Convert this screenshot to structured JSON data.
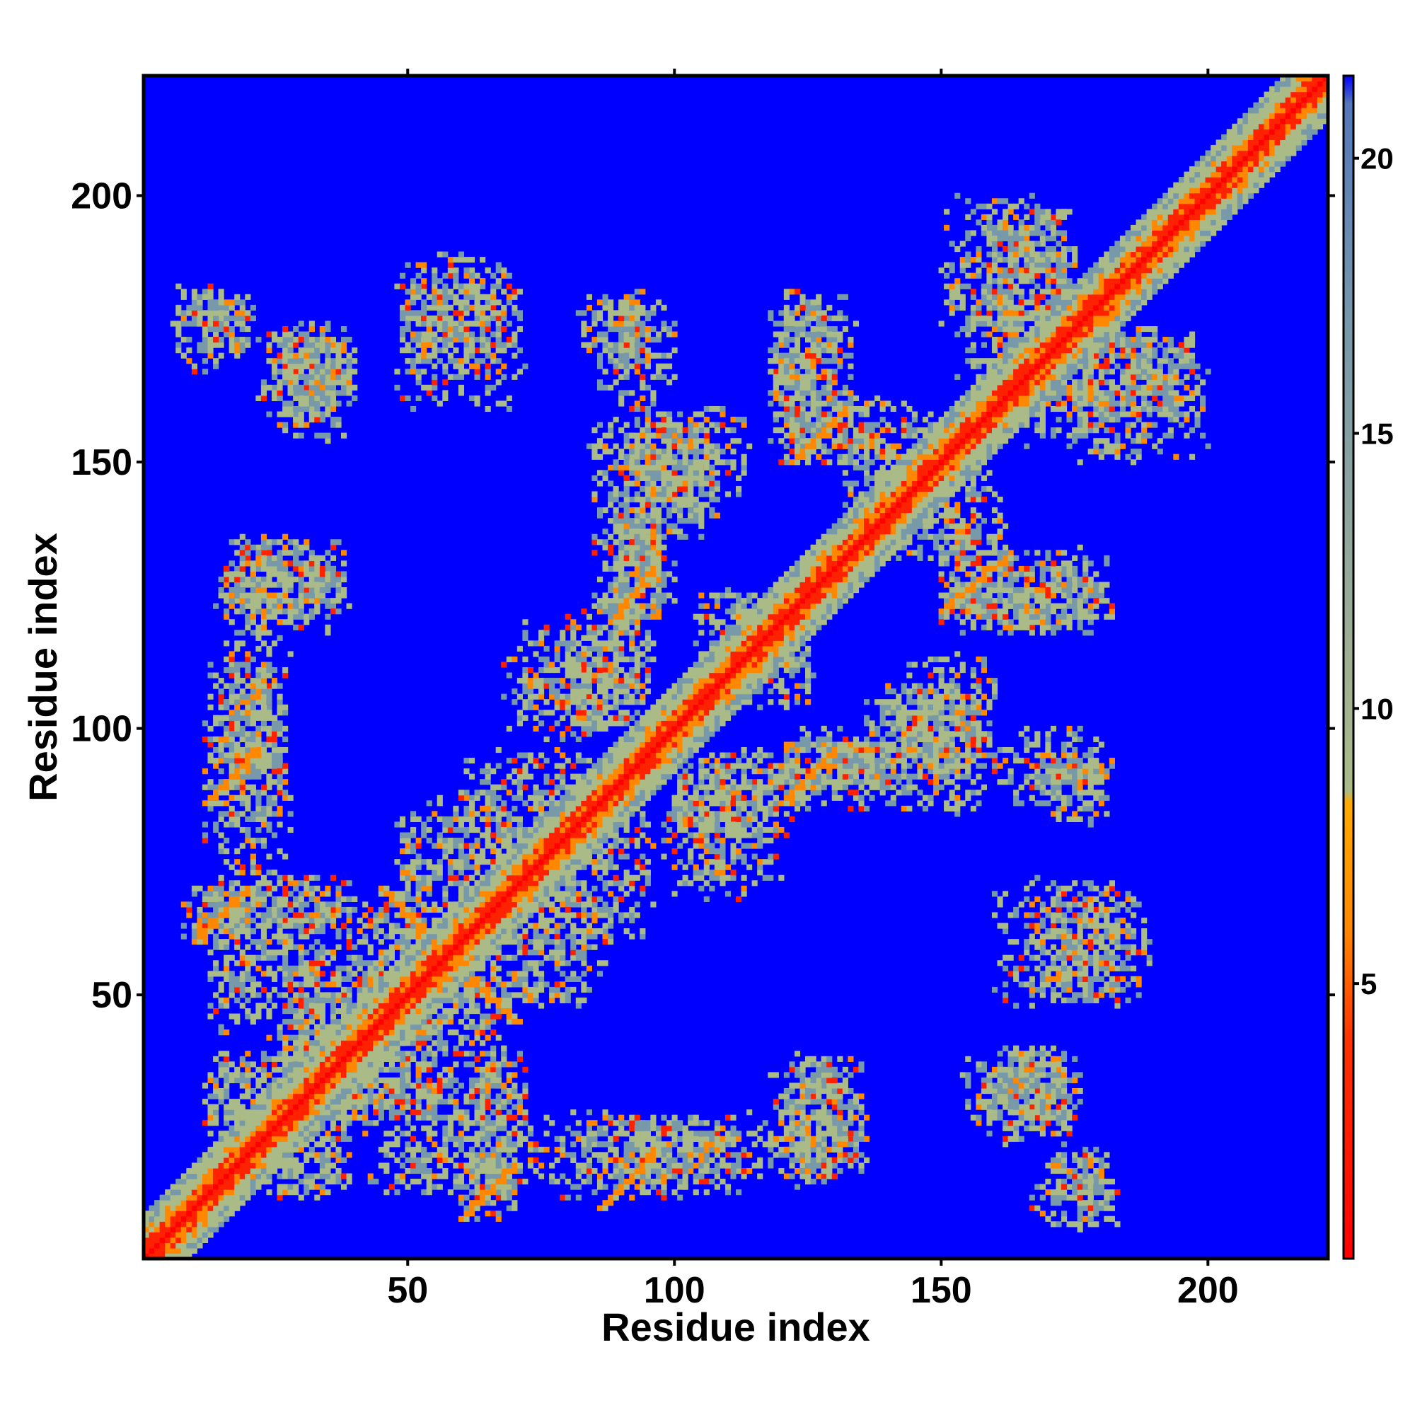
{
  "chart_data": {
    "type": "heatmap",
    "title": "",
    "xlabel": "Residue index",
    "ylabel": "Residue index",
    "xlim": [
      1,
      222
    ],
    "ylim": [
      1,
      222
    ],
    "x_ticks": [
      50,
      100,
      150,
      200
    ],
    "y_ticks": [
      50,
      100,
      150,
      200
    ],
    "colorbar": {
      "ticks": [
        5,
        10,
        15,
        20
      ],
      "range": [
        0,
        21.5
      ],
      "stops": [
        {
          "value": 0,
          "color": "#ff0000"
        },
        {
          "value": 4,
          "color": "#ff3300"
        },
        {
          "value": 6,
          "color": "#ff8800"
        },
        {
          "value": 8.3,
          "color": "#ffaa00"
        },
        {
          "value": 8.5,
          "color": "#aabb88"
        },
        {
          "value": 12,
          "color": "#99aa99"
        },
        {
          "value": 17,
          "color": "#7799aa"
        },
        {
          "value": 21,
          "color": "#5577bb"
        },
        {
          "value": 21.5,
          "color": "#0000ff"
        }
      ]
    },
    "background_color": "#0000ff",
    "diagonal_color": "#ff0000",
    "value_band_colors": {
      "near": "#ff2200",
      "close": "#ff8800",
      "mid": "#aabb88",
      "far": "#7799aa",
      "absent": "#0000ff"
    },
    "contact_regions": [
      {
        "x": [
          10,
          22
        ],
        "y": [
          170,
          182
        ],
        "density": 0.7
      },
      {
        "x": [
          24,
          40
        ],
        "y": [
          158,
          176
        ],
        "density": 0.7
      },
      {
        "x": [
          48,
          68
        ],
        "y": [
          168,
          186
        ],
        "density": 0.6
      },
      {
        "x": [
          82,
          96
        ],
        "y": [
          168,
          182
        ],
        "density": 0.6
      },
      {
        "x": [
          118,
          134
        ],
        "y": [
          150,
          182
        ],
        "density": 0.6
      },
      {
        "x": [
          150,
          175
        ],
        "y": [
          165,
          200
        ],
        "density": 0.55
      },
      {
        "x": [
          172,
          198
        ],
        "y": [
          158,
          175
        ],
        "density": 0.5
      },
      {
        "x": [
          84,
          114
        ],
        "y": [
          140,
          160
        ],
        "density": 0.6
      },
      {
        "x": [
          14,
          38
        ],
        "y": [
          120,
          134
        ],
        "density": 0.6
      },
      {
        "x": [
          88,
          100
        ],
        "y": [
          120,
          140
        ],
        "density": 0.7
      },
      {
        "x": [
          140,
          162
        ],
        "y": [
          130,
          148
        ],
        "density": 0.6
      },
      {
        "x": [
          150,
          182
        ],
        "y": [
          118,
          130
        ],
        "density": 0.6
      },
      {
        "x": [
          14,
          26
        ],
        "y": [
          85,
          112
        ],
        "density": 0.6
      },
      {
        "x": [
          68,
          92
        ],
        "y": [
          98,
          120
        ],
        "density": 0.6
      },
      {
        "x": [
          108,
          126
        ],
        "y": [
          104,
          118
        ],
        "density": 0.6
      },
      {
        "x": [
          120,
          142
        ],
        "y": [
          85,
          98
        ],
        "density": 0.65
      },
      {
        "x": [
          136,
          160
        ],
        "y": [
          90,
          108
        ],
        "density": 0.6
      },
      {
        "x": [
          160,
          180
        ],
        "y": [
          86,
          100
        ],
        "density": 0.5
      },
      {
        "x": [
          60,
          88
        ],
        "y": [
          74,
          96
        ],
        "density": 0.55
      },
      {
        "x": [
          100,
          124
        ],
        "y": [
          80,
          96
        ],
        "density": 0.6
      },
      {
        "x": [
          8,
          22
        ],
        "y": [
          58,
          72
        ],
        "density": 0.7
      },
      {
        "x": [
          22,
          40
        ],
        "y": [
          60,
          72
        ],
        "density": 0.6
      },
      {
        "x": [
          38,
          54
        ],
        "y": [
          38,
          70
        ],
        "density": 0.6
      },
      {
        "x": [
          58,
          88
        ],
        "y": [
          48,
          68
        ],
        "density": 0.55
      },
      {
        "x": [
          160,
          190
        ],
        "y": [
          48,
          72
        ],
        "density": 0.5
      },
      {
        "x": [
          12,
          30
        ],
        "y": [
          20,
          40
        ],
        "density": 0.6
      },
      {
        "x": [
          26,
          46
        ],
        "y": [
          26,
          56
        ],
        "density": 0.6
      },
      {
        "x": [
          42,
          72
        ],
        "y": [
          12,
          38
        ],
        "density": 0.55
      },
      {
        "x": [
          72,
          120
        ],
        "y": [
          12,
          28
        ],
        "density": 0.55
      },
      {
        "x": [
          118,
          136
        ],
        "y": [
          14,
          40
        ],
        "density": 0.55
      },
      {
        "x": [
          154,
          176
        ],
        "y": [
          22,
          40
        ],
        "density": 0.55
      },
      {
        "x": [
          166,
          184
        ],
        "y": [
          6,
          16
        ],
        "density": 0.55
      }
    ],
    "contact_streaks": [
      {
        "from": [
          45,
          70
        ],
        "to": [
          70,
          45
        ],
        "color": "#ff8800"
      },
      {
        "from": [
          88,
          120
        ],
        "to": [
          96,
          130
        ],
        "color": "#ff8800"
      },
      {
        "from": [
          120,
          86
        ],
        "to": [
          130,
          96
        ],
        "color": "#ff8800"
      },
      {
        "from": [
          150,
          122
        ],
        "to": [
          162,
          132
        ],
        "color": "#ff8800"
      },
      {
        "from": [
          10,
          60
        ],
        "to": [
          20,
          70
        ],
        "color": "#ff8800"
      },
      {
        "from": [
          60,
          8
        ],
        "to": [
          70,
          18
        ],
        "color": "#ff8800"
      },
      {
        "from": [
          12,
          86
        ],
        "to": [
          22,
          96
        ],
        "color": "#ff8800"
      },
      {
        "from": [
          86,
          10
        ],
        "to": [
          96,
          20
        ],
        "color": "#ff8800"
      },
      {
        "from": [
          122,
          150
        ],
        "to": [
          132,
          160
        ],
        "color": "#ff8800"
      }
    ]
  }
}
